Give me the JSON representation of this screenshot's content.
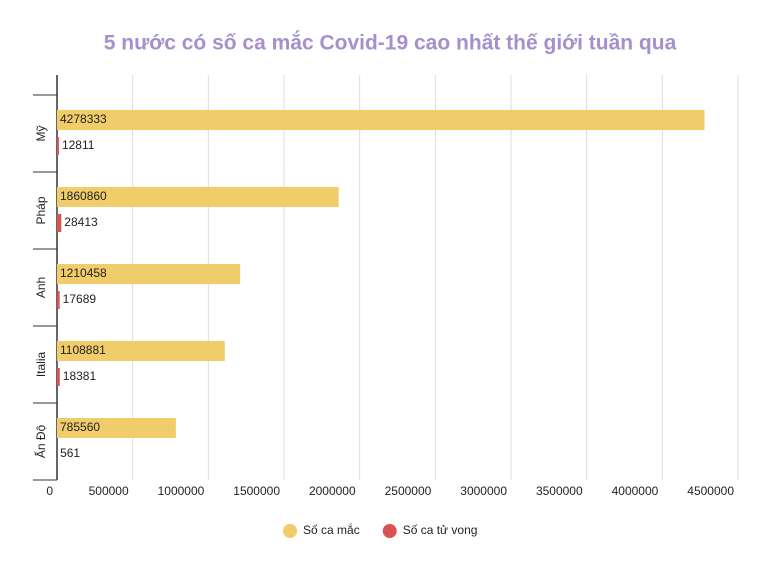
{
  "chart_data": {
    "type": "hbar",
    "title": "5 nước có số ca mắc Covid-19 cao nhất thế giới tuần qua",
    "categories": [
      "Mỹ",
      "Pháp",
      "Anh",
      "Italia",
      "Ấn Độ"
    ],
    "series": [
      {
        "name": "Số ca mắc",
        "color": "#f0cc6b",
        "values": [
          4278333,
          1860860,
          1210458,
          1108881,
          785560
        ]
      },
      {
        "name": "Số ca tử vong",
        "color": "#d9534f",
        "values": [
          12811,
          28413,
          17689,
          18381,
          561
        ]
      }
    ],
    "xlim": [
      0,
      4500000
    ],
    "xticks": [
      0,
      500000,
      1000000,
      1500000,
      2000000,
      2500000,
      3000000,
      3500000,
      4000000,
      4500000
    ],
    "grid": true,
    "legend": "bottom"
  }
}
